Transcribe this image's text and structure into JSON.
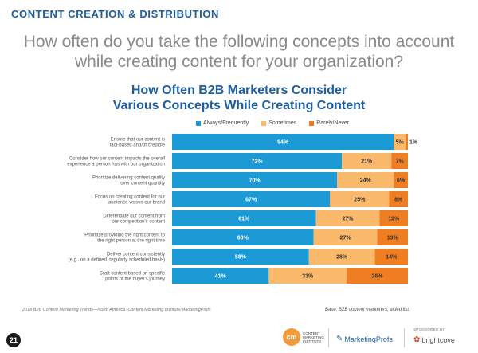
{
  "header": {
    "section": "CONTENT CREATION & DISTRIBUTION",
    "question": "How often do you take the following concepts into account while creating content for your organization?"
  },
  "chart_data": {
    "type": "bar",
    "orientation": "horizontal",
    "stacked": true,
    "title_line1": "How Often B2B Marketers Consider",
    "title_line2": "Various Concepts While Creating Content",
    "categories": [
      [
        "Ensure that our content is",
        "fact-based and/or credible"
      ],
      [
        "Consider how our content impacts the overall",
        "experience a person has with our organization"
      ],
      [
        "Prioritize delivering content quality",
        "over content quantity"
      ],
      [
        "Focus on creating content for our",
        "audience versus our brand"
      ],
      [
        "Differentiate our content from",
        "our competition's content"
      ],
      [
        "Prioritize providing the right content to",
        "the right person at the right time"
      ],
      [
        "Deliver content consistently",
        "(e.g., on a defined, regularly scheduled basis)"
      ],
      [
        "Craft content based on specific",
        "points of the buyer's journey"
      ]
    ],
    "series": [
      {
        "name": "Always/Frequently",
        "color": "#1c9ad6",
        "values": [
          94,
          72,
          70,
          67,
          61,
          60,
          58,
          41
        ]
      },
      {
        "name": "Sometimes",
        "color": "#fbb96b",
        "values": [
          5,
          21,
          24,
          25,
          27,
          27,
          28,
          33
        ]
      },
      {
        "name": "Rarely/Never",
        "color": "#ef7d22",
        "values": [
          1,
          7,
          6,
          8,
          12,
          13,
          14,
          26
        ]
      }
    ],
    "xlim": [
      0,
      100
    ],
    "label_suffix": "%"
  },
  "footer": {
    "source": "2018 B2B Content Marketing Trends—North America: Content Marketing Institute/MarketingProfs",
    "base": "Base: B2B content marketers; aided list.",
    "page_number": "21",
    "cmi_mark": "cm",
    "cmi_name": "CONTENT MARKETING INSTITUTE",
    "mp_name": "MarketingProfs",
    "sponsor_label": "SPONSORED BY",
    "sponsor_name": "brightcove"
  },
  "colors": {
    "brand_blue": "#1f5fa0",
    "question_gray": "#8b8b8b"
  }
}
